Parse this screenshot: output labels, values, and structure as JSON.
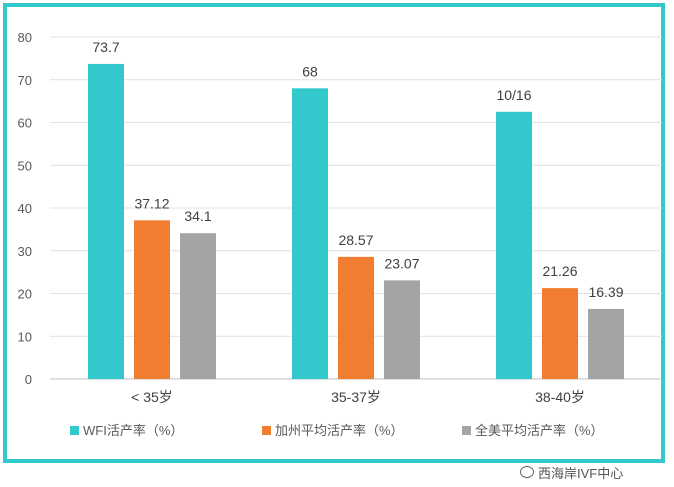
{
  "chart_data": {
    "type": "bar",
    "categories": [
      "< 35岁",
      "35-37岁",
      "38-40岁"
    ],
    "series": [
      {
        "name": "WFI活产率（%）",
        "color": "#33C9CC",
        "values": [
          73.7,
          68,
          62.5
        ],
        "labels": [
          "73.7",
          "68",
          "10/16"
        ]
      },
      {
        "name": "加州平均活产率（%）",
        "color": "#F07D30",
        "values": [
          37.12,
          28.57,
          21.26
        ],
        "labels": [
          "37.12",
          "28.57",
          "21.26"
        ]
      },
      {
        "name": "全美平均活产率（%）",
        "color": "#A5A4A5",
        "values": [
          34.1,
          23.07,
          16.39
        ],
        "labels": [
          "34.1",
          "23.07",
          "16.39"
        ]
      }
    ],
    "ylim": [
      0,
      80
    ],
    "yticks": [
      0,
      10,
      20,
      30,
      40,
      50,
      60,
      70,
      80
    ],
    "grid": true,
    "legend": "bottom"
  },
  "watermark": {
    "text": "西海岸IVF中心",
    "icon": "wechat-icon"
  }
}
